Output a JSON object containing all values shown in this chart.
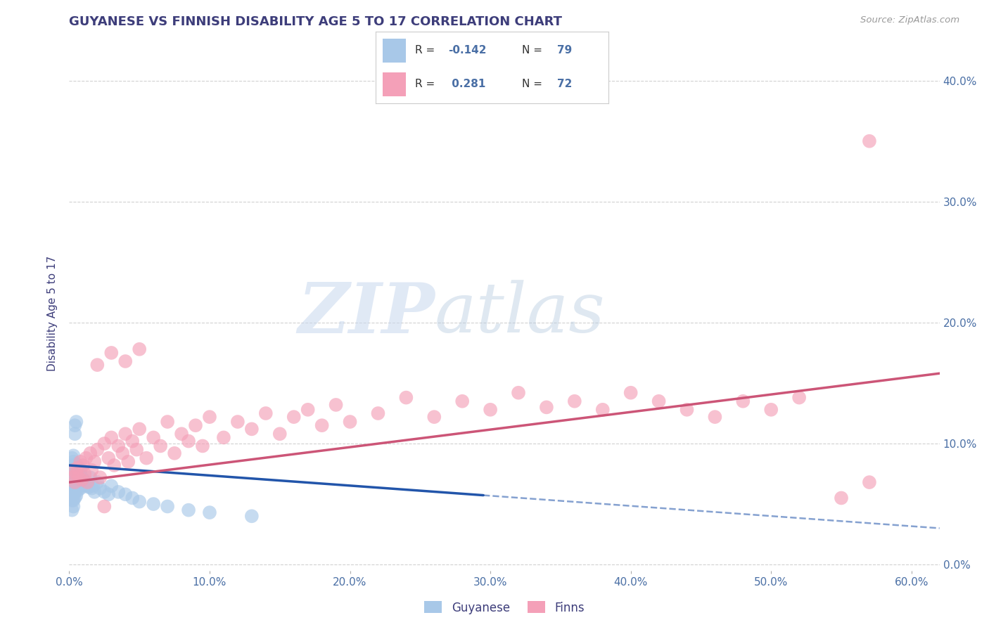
{
  "title": "GUYANESE VS FINNISH DISABILITY AGE 5 TO 17 CORRELATION CHART",
  "source": "Source: ZipAtlas.com",
  "ylabel": "Disability Age 5 to 17",
  "xlim": [
    0.0,
    0.62
  ],
  "ylim": [
    -0.005,
    0.42
  ],
  "xticks": [
    0.0,
    0.1,
    0.2,
    0.3,
    0.4,
    0.5,
    0.6
  ],
  "yticks": [
    0.0,
    0.1,
    0.2,
    0.3,
    0.4
  ],
  "ytick_labels": [
    "0.0%",
    "10.0%",
    "20.0%",
    "30.0%",
    "40.0%"
  ],
  "xtick_labels": [
    "0.0%",
    "10.0%",
    "20.0%",
    "30.0%",
    "40.0%",
    "50.0%",
    "60.0%"
  ],
  "background_color": "#ffffff",
  "grid_color": "#cccccc",
  "title_color": "#3d3d7a",
  "axis_label_color": "#3d3d7a",
  "tick_color": "#4a6fa5",
  "watermark_zip": "ZIP",
  "watermark_atlas": "atlas",
  "legend_label1": "R = -0.142   N = 79",
  "legend_label2": "R =  0.281   N = 72",
  "blue_color": "#a8c8e8",
  "pink_color": "#f4a0b8",
  "blue_line_color": "#2255aa",
  "pink_line_color": "#cc5577",
  "blue_line_x0": 0.0,
  "blue_line_x_solid_end": 0.295,
  "blue_line_x1": 0.62,
  "blue_line_y0": 0.082,
  "blue_line_y1": 0.03,
  "pink_line_x0": 0.0,
  "pink_line_x1": 0.62,
  "pink_line_y0": 0.068,
  "pink_line_y1": 0.158,
  "blue_scatter": [
    [
      0.001,
      0.072
    ],
    [
      0.001,
      0.068
    ],
    [
      0.001,
      0.063
    ],
    [
      0.001,
      0.058
    ],
    [
      0.001,
      0.075
    ],
    [
      0.001,
      0.08
    ],
    [
      0.001,
      0.055
    ],
    [
      0.002,
      0.078
    ],
    [
      0.002,
      0.072
    ],
    [
      0.002,
      0.068
    ],
    [
      0.002,
      0.063
    ],
    [
      0.002,
      0.058
    ],
    [
      0.002,
      0.082
    ],
    [
      0.002,
      0.075
    ],
    [
      0.002,
      0.088
    ],
    [
      0.002,
      0.053
    ],
    [
      0.003,
      0.078
    ],
    [
      0.003,
      0.073
    ],
    [
      0.003,
      0.068
    ],
    [
      0.003,
      0.063
    ],
    [
      0.003,
      0.058
    ],
    [
      0.003,
      0.085
    ],
    [
      0.003,
      0.09
    ],
    [
      0.003,
      0.053
    ],
    [
      0.004,
      0.075
    ],
    [
      0.004,
      0.07
    ],
    [
      0.004,
      0.065
    ],
    [
      0.004,
      0.06
    ],
    [
      0.004,
      0.08
    ],
    [
      0.004,
      0.055
    ],
    [
      0.005,
      0.078
    ],
    [
      0.005,
      0.072
    ],
    [
      0.005,
      0.067
    ],
    [
      0.005,
      0.062
    ],
    [
      0.005,
      0.057
    ],
    [
      0.005,
      0.083
    ],
    [
      0.006,
      0.076
    ],
    [
      0.006,
      0.071
    ],
    [
      0.006,
      0.066
    ],
    [
      0.006,
      0.061
    ],
    [
      0.007,
      0.075
    ],
    [
      0.007,
      0.07
    ],
    [
      0.007,
      0.065
    ],
    [
      0.007,
      0.08
    ],
    [
      0.008,
      0.073
    ],
    [
      0.008,
      0.068
    ],
    [
      0.008,
      0.063
    ],
    [
      0.008,
      0.078
    ],
    [
      0.009,
      0.072
    ],
    [
      0.009,
      0.067
    ],
    [
      0.01,
      0.07
    ],
    [
      0.01,
      0.065
    ],
    [
      0.011,
      0.068
    ],
    [
      0.012,
      0.066
    ],
    [
      0.013,
      0.065
    ],
    [
      0.014,
      0.064
    ],
    [
      0.015,
      0.072
    ],
    [
      0.016,
      0.063
    ],
    [
      0.017,
      0.065
    ],
    [
      0.018,
      0.06
    ],
    [
      0.02,
      0.068
    ],
    [
      0.022,
      0.063
    ],
    [
      0.025,
      0.06
    ],
    [
      0.028,
      0.058
    ],
    [
      0.03,
      0.065
    ],
    [
      0.035,
      0.06
    ],
    [
      0.04,
      0.058
    ],
    [
      0.045,
      0.055
    ],
    [
      0.05,
      0.052
    ],
    [
      0.06,
      0.05
    ],
    [
      0.07,
      0.048
    ],
    [
      0.085,
      0.045
    ],
    [
      0.1,
      0.043
    ],
    [
      0.13,
      0.04
    ],
    [
      0.004,
      0.115
    ],
    [
      0.005,
      0.118
    ],
    [
      0.004,
      0.108
    ],
    [
      0.003,
      0.048
    ],
    [
      0.002,
      0.045
    ]
  ],
  "pink_scatter": [
    [
      0.002,
      0.072
    ],
    [
      0.003,
      0.078
    ],
    [
      0.004,
      0.068
    ],
    [
      0.005,
      0.075
    ],
    [
      0.006,
      0.08
    ],
    [
      0.007,
      0.073
    ],
    [
      0.008,
      0.085
    ],
    [
      0.009,
      0.07
    ],
    [
      0.01,
      0.082
    ],
    [
      0.011,
      0.075
    ],
    [
      0.012,
      0.088
    ],
    [
      0.013,
      0.068
    ],
    [
      0.015,
      0.092
    ],
    [
      0.016,
      0.078
    ],
    [
      0.018,
      0.085
    ],
    [
      0.02,
      0.095
    ],
    [
      0.022,
      0.072
    ],
    [
      0.025,
      0.1
    ],
    [
      0.028,
      0.088
    ],
    [
      0.03,
      0.105
    ],
    [
      0.032,
      0.082
    ],
    [
      0.035,
      0.098
    ],
    [
      0.038,
      0.092
    ],
    [
      0.04,
      0.108
    ],
    [
      0.042,
      0.085
    ],
    [
      0.045,
      0.102
    ],
    [
      0.048,
      0.095
    ],
    [
      0.05,
      0.112
    ],
    [
      0.055,
      0.088
    ],
    [
      0.06,
      0.105
    ],
    [
      0.065,
      0.098
    ],
    [
      0.07,
      0.118
    ],
    [
      0.075,
      0.092
    ],
    [
      0.08,
      0.108
    ],
    [
      0.085,
      0.102
    ],
    [
      0.09,
      0.115
    ],
    [
      0.095,
      0.098
    ],
    [
      0.1,
      0.122
    ],
    [
      0.11,
      0.105
    ],
    [
      0.12,
      0.118
    ],
    [
      0.13,
      0.112
    ],
    [
      0.14,
      0.125
    ],
    [
      0.15,
      0.108
    ],
    [
      0.16,
      0.122
    ],
    [
      0.17,
      0.128
    ],
    [
      0.18,
      0.115
    ],
    [
      0.19,
      0.132
    ],
    [
      0.2,
      0.118
    ],
    [
      0.22,
      0.125
    ],
    [
      0.24,
      0.138
    ],
    [
      0.26,
      0.122
    ],
    [
      0.28,
      0.135
    ],
    [
      0.3,
      0.128
    ],
    [
      0.32,
      0.142
    ],
    [
      0.34,
      0.13
    ],
    [
      0.36,
      0.135
    ],
    [
      0.38,
      0.128
    ],
    [
      0.4,
      0.142
    ],
    [
      0.42,
      0.135
    ],
    [
      0.44,
      0.128
    ],
    [
      0.46,
      0.122
    ],
    [
      0.48,
      0.135
    ],
    [
      0.5,
      0.128
    ],
    [
      0.52,
      0.138
    ],
    [
      0.55,
      0.055
    ],
    [
      0.57,
      0.068
    ],
    [
      0.03,
      0.175
    ],
    [
      0.04,
      0.168
    ],
    [
      0.05,
      0.178
    ],
    [
      0.02,
      0.165
    ],
    [
      0.57,
      0.35
    ],
    [
      0.025,
      0.048
    ]
  ]
}
